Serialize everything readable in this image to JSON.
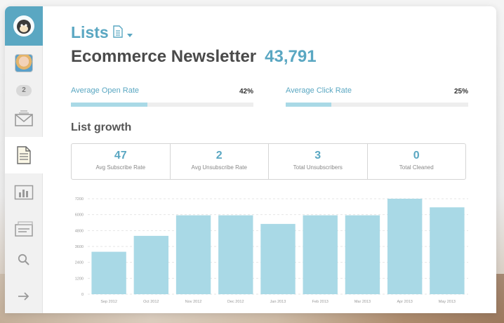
{
  "header": {
    "section": "Lists",
    "list_name": "Ecommerce Newsletter",
    "subscriber_count": "43,791"
  },
  "sidebar": {
    "badge_count": "2",
    "items": [
      {
        "icon": "mailchimp-logo-icon"
      },
      {
        "icon": "user-avatar"
      },
      {
        "icon": "campaigns-envelope-icon"
      },
      {
        "icon": "lists-document-icon",
        "active": true
      },
      {
        "icon": "reports-bar-chart-icon"
      },
      {
        "icon": "autoresponders-icon"
      },
      {
        "icon": "search-icon"
      },
      {
        "icon": "logout-arrow-icon"
      }
    ]
  },
  "rates": {
    "open": {
      "label": "Average Open Rate",
      "value": "42%",
      "fraction": 0.42
    },
    "click": {
      "label": "Average Click Rate",
      "value": "25%",
      "fraction": 0.25
    }
  },
  "growth": {
    "title": "List growth",
    "stats": [
      {
        "value": "47",
        "label": "Avg Subscribe Rate"
      },
      {
        "value": "2",
        "label": "Avg Unsubscribe Rate"
      },
      {
        "value": "3",
        "label": "Total Unsubscribers"
      },
      {
        "value": "0",
        "label": "Total Cleaned"
      }
    ]
  },
  "colors": {
    "accent": "#5aa7c2",
    "bar": "#a9d9e6",
    "text_dark": "#4a4a4a"
  },
  "chart_data": {
    "type": "bar",
    "categories": [
      "Sep 2012",
      "Oct 2012",
      "Nov 2012",
      "Dec 2012",
      "Jan 2013",
      "Feb 2013",
      "Mar 2013",
      "Apr 2013",
      "May 2013"
    ],
    "values": [
      3200,
      4400,
      5950,
      5950,
      5300,
      5950,
      5950,
      7200,
      6550
    ],
    "yticks": [
      0,
      1200,
      2400,
      3600,
      4800,
      6000,
      7200
    ],
    "ylim": [
      0,
      7200
    ],
    "grid": true
  }
}
